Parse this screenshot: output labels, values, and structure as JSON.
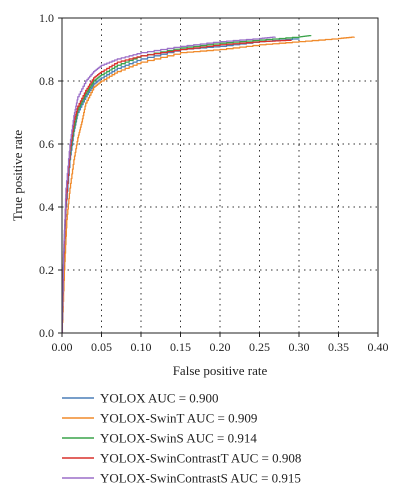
{
  "chart_data": {
    "type": "line",
    "title": "",
    "xlabel": "False positive rate",
    "ylabel": "True positive rate",
    "xlim": [
      0,
      0.4
    ],
    "ylim": [
      0,
      1.0
    ],
    "xticks": [
      "0.00",
      "0.05",
      "0.10",
      "0.15",
      "0.20",
      "0.25",
      "0.30",
      "0.35",
      "0.40"
    ],
    "yticks": [
      "0.0",
      "0.2",
      "0.4",
      "0.6",
      "0.8",
      "1.0"
    ],
    "grid": true,
    "legend_placement": "bottom",
    "series": [
      {
        "name": "YOLOX AUC = 0.900",
        "color": "#4a7fb8",
        "points": [
          [
            0,
            0
          ],
          [
            0.002,
            0.22
          ],
          [
            0.005,
            0.4
          ],
          [
            0.01,
            0.55
          ],
          [
            0.015,
            0.64
          ],
          [
            0.02,
            0.7
          ],
          [
            0.03,
            0.75
          ],
          [
            0.04,
            0.79
          ],
          [
            0.05,
            0.81
          ],
          [
            0.07,
            0.84
          ],
          [
            0.1,
            0.87
          ],
          [
            0.15,
            0.9
          ],
          [
            0.2,
            0.91
          ],
          [
            0.25,
            0.925
          ],
          [
            0.3,
            0.935
          ]
        ]
      },
      {
        "name": "YOLOX-SwinT AUC = 0.909",
        "color": "#f08a2a",
        "points": [
          [
            0,
            0
          ],
          [
            0.003,
            0.2
          ],
          [
            0.006,
            0.36
          ],
          [
            0.01,
            0.46
          ],
          [
            0.015,
            0.55
          ],
          [
            0.02,
            0.62
          ],
          [
            0.025,
            0.67
          ],
          [
            0.03,
            0.73
          ],
          [
            0.04,
            0.78
          ],
          [
            0.05,
            0.8
          ],
          [
            0.07,
            0.83
          ],
          [
            0.1,
            0.86
          ],
          [
            0.15,
            0.89
          ],
          [
            0.2,
            0.9
          ],
          [
            0.25,
            0.915
          ],
          [
            0.3,
            0.925
          ],
          [
            0.35,
            0.935
          ],
          [
            0.37,
            0.94
          ]
        ]
      },
      {
        "name": "YOLOX-SwinS AUC = 0.914",
        "color": "#3aa34a",
        "points": [
          [
            0,
            0
          ],
          [
            0.002,
            0.25
          ],
          [
            0.005,
            0.44
          ],
          [
            0.01,
            0.57
          ],
          [
            0.015,
            0.65
          ],
          [
            0.02,
            0.71
          ],
          [
            0.03,
            0.76
          ],
          [
            0.04,
            0.8
          ],
          [
            0.05,
            0.82
          ],
          [
            0.07,
            0.85
          ],
          [
            0.1,
            0.88
          ],
          [
            0.15,
            0.905
          ],
          [
            0.2,
            0.92
          ],
          [
            0.25,
            0.93
          ],
          [
            0.3,
            0.94
          ],
          [
            0.315,
            0.945
          ]
        ]
      },
      {
        "name": "YOLOX-SwinContrastT AUC = 0.908",
        "color": "#d9302c",
        "points": [
          [
            0,
            0
          ],
          [
            0.002,
            0.24
          ],
          [
            0.005,
            0.42
          ],
          [
            0.01,
            0.58
          ],
          [
            0.015,
            0.67
          ],
          [
            0.02,
            0.72
          ],
          [
            0.03,
            0.77
          ],
          [
            0.04,
            0.81
          ],
          [
            0.05,
            0.83
          ],
          [
            0.07,
            0.86
          ],
          [
            0.1,
            0.88
          ],
          [
            0.15,
            0.9
          ],
          [
            0.2,
            0.915
          ],
          [
            0.25,
            0.925
          ],
          [
            0.29,
            0.93
          ]
        ]
      },
      {
        "name": "YOLOX-SwinContrastS AUC = 0.915",
        "color": "#9b6fc8",
        "points": [
          [
            0,
            0
          ],
          [
            0.002,
            0.26
          ],
          [
            0.005,
            0.46
          ],
          [
            0.01,
            0.6
          ],
          [
            0.015,
            0.69
          ],
          [
            0.02,
            0.75
          ],
          [
            0.03,
            0.8
          ],
          [
            0.04,
            0.83
          ],
          [
            0.05,
            0.85
          ],
          [
            0.07,
            0.87
          ],
          [
            0.1,
            0.89
          ],
          [
            0.15,
            0.91
          ],
          [
            0.2,
            0.925
          ],
          [
            0.25,
            0.935
          ],
          [
            0.27,
            0.94
          ]
        ]
      }
    ]
  }
}
